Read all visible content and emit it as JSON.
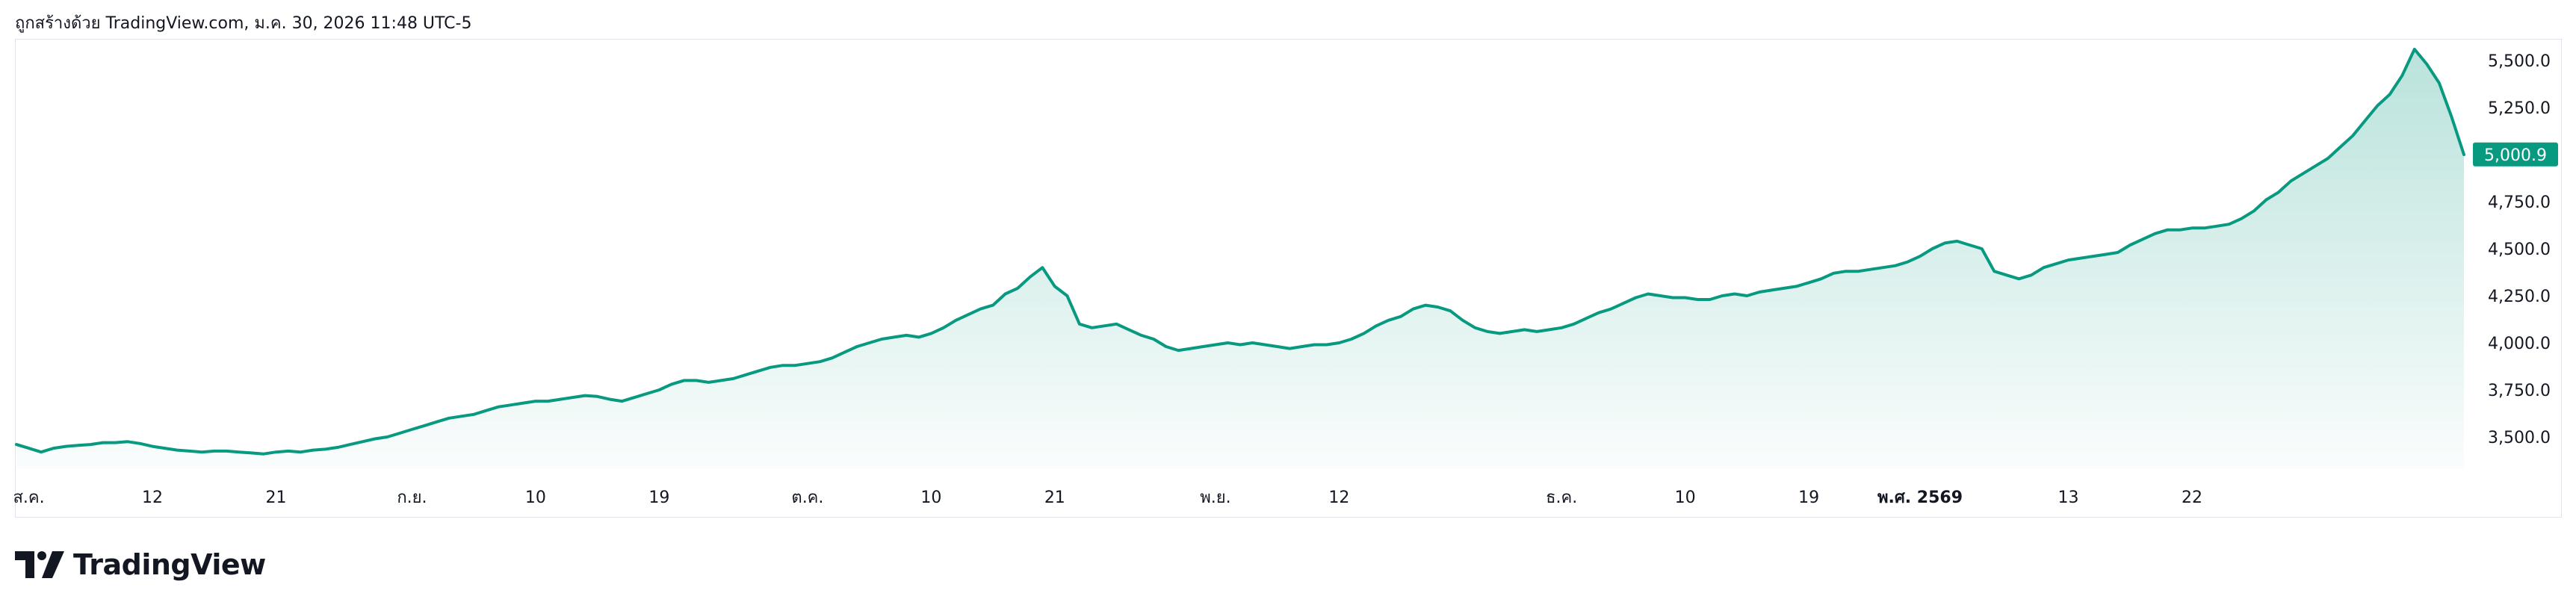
{
  "header": {
    "caption": "ถูกสร้างด้วย TradingView.com, ม.ค. 30, 2026 11:48 UTC-5"
  },
  "brand": {
    "name": "TradingView",
    "color": "#131722"
  },
  "colors": {
    "line": "#089981",
    "area_top": "#089981",
    "price_badge": "#089981",
    "axis_text": "#131722",
    "border": "#e0e3eb"
  },
  "chart_data": {
    "type": "area",
    "y_ticks": [
      "3,500.0",
      "3,750.0",
      "4,000.0",
      "4,250.0",
      "4,500.0",
      "4,750.0",
      "5,000.0",
      "5,250.0",
      "5,500.0"
    ],
    "y_tick_values": [
      3500,
      3750,
      4000,
      4250,
      4500,
      4750,
      5000,
      5250,
      5500
    ],
    "ylim": [
      3350,
      5600
    ],
    "last_price_label": "5,000.9",
    "last_price": 5000.9,
    "x_ticks": [
      {
        "label": "ส.ค.",
        "bold": false,
        "idx": 1
      },
      {
        "label": "12",
        "bold": false,
        "idx": 11
      },
      {
        "label": "21",
        "bold": false,
        "idx": 21
      },
      {
        "label": "ก.ย.",
        "bold": false,
        "idx": 32
      },
      {
        "label": "10",
        "bold": false,
        "idx": 42
      },
      {
        "label": "19",
        "bold": false,
        "idx": 52
      },
      {
        "label": "ต.ค.",
        "bold": false,
        "idx": 64
      },
      {
        "label": "10",
        "bold": false,
        "idx": 74
      },
      {
        "label": "21",
        "bold": false,
        "idx": 84
      },
      {
        "label": "พ.ย.",
        "bold": false,
        "idx": 97
      },
      {
        "label": "12",
        "bold": false,
        "idx": 107
      },
      {
        "label": "ธ.ค.",
        "bold": false,
        "idx": 125
      },
      {
        "label": "10",
        "bold": false,
        "idx": 135
      },
      {
        "label": "19",
        "bold": false,
        "idx": 145
      },
      {
        "label": "พ.ศ. 2569",
        "bold": true,
        "idx": 154
      },
      {
        "label": "13",
        "bold": false,
        "idx": 166
      },
      {
        "label": "22",
        "bold": false,
        "idx": 176
      }
    ],
    "values": [
      3460,
      3440,
      3420,
      3440,
      3450,
      3455,
      3460,
      3470,
      3470,
      3475,
      3465,
      3450,
      3440,
      3430,
      3425,
      3420,
      3425,
      3425,
      3420,
      3415,
      3410,
      3420,
      3425,
      3420,
      3430,
      3435,
      3445,
      3460,
      3475,
      3490,
      3500,
      3520,
      3540,
      3560,
      3580,
      3600,
      3610,
      3620,
      3640,
      3660,
      3670,
      3680,
      3690,
      3690,
      3700,
      3710,
      3720,
      3715,
      3700,
      3690,
      3710,
      3730,
      3750,
      3780,
      3800,
      3800,
      3790,
      3800,
      3810,
      3830,
      3850,
      3870,
      3880,
      3880,
      3890,
      3900,
      3920,
      3950,
      3980,
      4000,
      4020,
      4030,
      4040,
      4030,
      4050,
      4080,
      4120,
      4150,
      4180,
      4200,
      4260,
      4290,
      4350,
      4400,
      4300,
      4250,
      4100,
      4080,
      4090,
      4100,
      4070,
      4040,
      4020,
      3980,
      3960,
      3970,
      3980,
      3990,
      4000,
      3990,
      4000,
      3990,
      3980,
      3970,
      3980,
      3990,
      3990,
      4000,
      4020,
      4050,
      4090,
      4120,
      4140,
      4180,
      4200,
      4190,
      4170,
      4120,
      4080,
      4060,
      4050,
      4060,
      4070,
      4060,
      4070,
      4080,
      4100,
      4130,
      4160,
      4180,
      4210,
      4240,
      4260,
      4250,
      4240,
      4240,
      4230,
      4230,
      4250,
      4260,
      4250,
      4270,
      4280,
      4290,
      4300,
      4320,
      4340,
      4370,
      4380,
      4380,
      4390,
      4400,
      4410,
      4430,
      4460,
      4500,
      4530,
      4540,
      4520,
      4500,
      4380,
      4360,
      4340,
      4360,
      4400,
      4420,
      4440,
      4450,
      4460,
      4470,
      4480,
      4520,
      4550,
      4580,
      4600,
      4600,
      4610,
      4610,
      4620,
      4630,
      4660,
      4700,
      4760,
      4800,
      4860,
      4900,
      4940,
      4980,
      5040,
      5100,
      5180,
      5260,
      5320,
      5420,
      5560,
      5480,
      5380,
      5200,
      5000
    ]
  }
}
